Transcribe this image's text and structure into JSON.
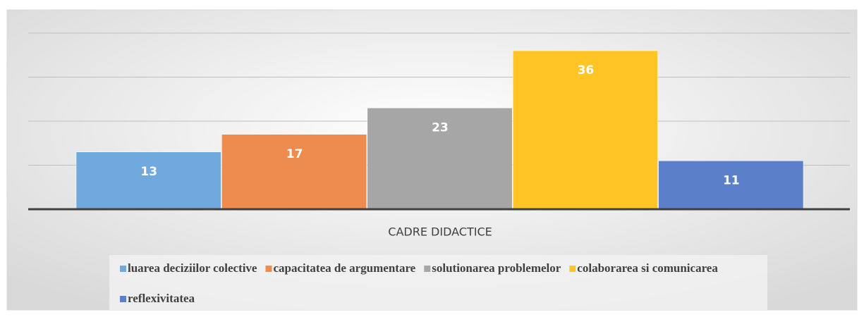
{
  "chart_data": {
    "type": "bar",
    "categories": [
      "CADRE DIDACTICE"
    ],
    "series": [
      {
        "name": "luarea deciziilor colective",
        "color": "#70a9dd",
        "values": [
          13
        ]
      },
      {
        "name": "capacitatea de argumentare",
        "color": "#ee8c4e",
        "values": [
          17
        ]
      },
      {
        "name": "solutionarea problemelor",
        "color": "#a6a6a6",
        "values": [
          23
        ]
      },
      {
        "name": "colaborarea si comunicarea",
        "color": "#ffc524",
        "values": [
          36
        ]
      },
      {
        "name": "reflexivitatea",
        "color": "#5b80c9",
        "values": [
          11
        ]
      }
    ],
    "ylim": [
      0,
      40
    ],
    "yticks": [
      0,
      10,
      20,
      30,
      40
    ],
    "grid": true,
    "legend": "bottom"
  }
}
